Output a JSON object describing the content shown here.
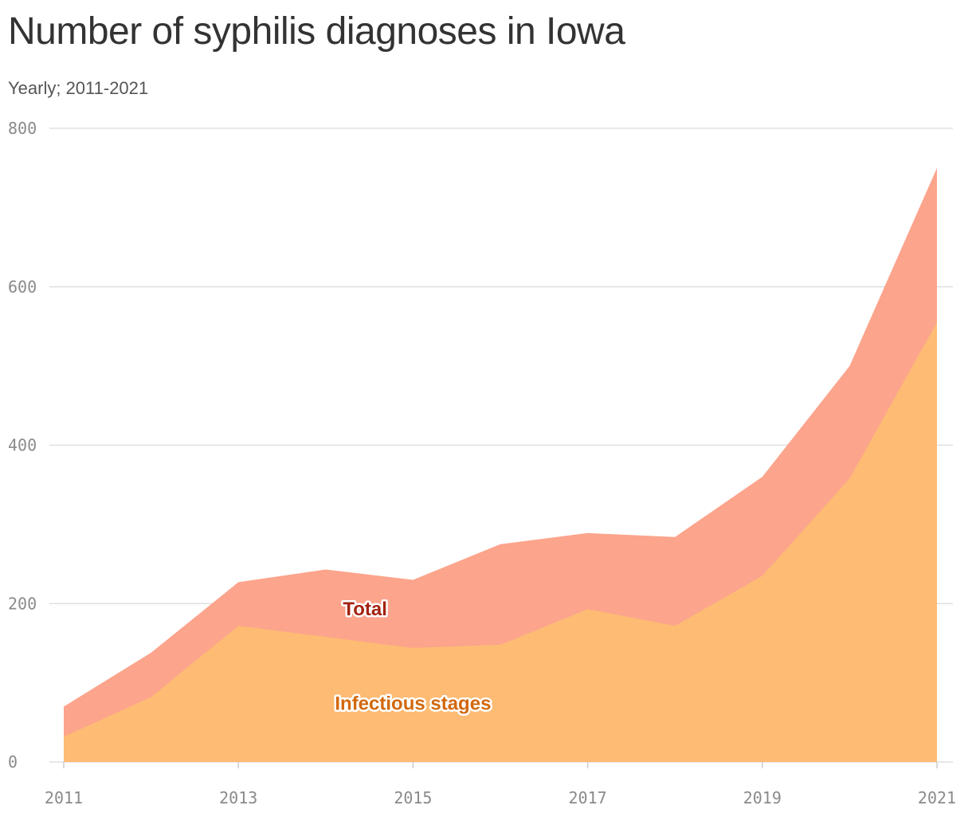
{
  "colors": {
    "total_fill": "#fca48c",
    "infectious_fill": "#fdbb74",
    "total_label": "#a3230f",
    "infectious_label": "#d2680c",
    "grid": "#e0e0e0",
    "tick_text": "#8a8a8a"
  },
  "chart_data": {
    "type": "area",
    "title": "Number of syphilis diagnoses in Iowa",
    "subtitle": "Yearly; 2011-2021",
    "x": [
      2011,
      2012,
      2013,
      2014,
      2015,
      2016,
      2017,
      2018,
      2019,
      2020,
      2021
    ],
    "series": [
      {
        "name": "Total",
        "values": [
          70,
          138,
          227,
          243,
          230,
          275,
          289,
          284,
          360,
          500,
          750
        ]
      },
      {
        "name": "Infectious stages",
        "values": [
          32,
          82,
          172,
          158,
          144,
          148,
          193,
          172,
          235,
          358,
          555
        ]
      }
    ],
    "xlim": [
      2011,
      2021
    ],
    "ylim": [
      0,
      800
    ],
    "y_ticks": [
      0,
      200,
      400,
      600,
      800
    ],
    "x_ticks": [
      2011,
      2013,
      2015,
      2017,
      2019,
      2021
    ],
    "grid": true,
    "xlabel": "",
    "ylabel": ""
  }
}
